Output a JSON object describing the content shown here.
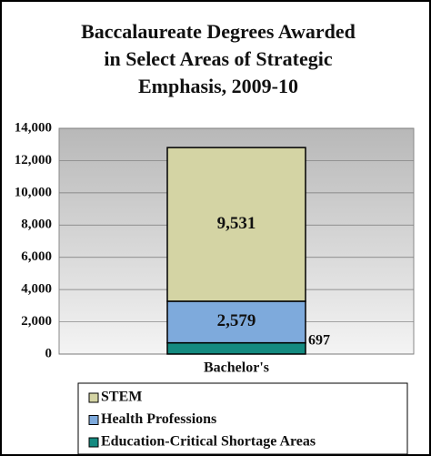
{
  "chart_data": {
    "type": "stacked_bar",
    "title": "Baccalaureate Degrees Awarded in Select Areas of Strategic Emphasis, 2009-10",
    "categories": [
      "Bachelor's"
    ],
    "series": [
      {
        "name": "Education-Critical Shortage Areas",
        "color": "#148a80",
        "values": [
          697
        ],
        "value_labels": [
          "697"
        ]
      },
      {
        "name": "Health Professions",
        "color": "#7eaadc",
        "values": [
          2579
        ],
        "value_labels": [
          "2,579"
        ]
      },
      {
        "name": "STEM",
        "color": "#d4d4a4",
        "values": [
          9531
        ],
        "value_labels": [
          "9,531"
        ]
      }
    ],
    "ylim": [
      0,
      14000
    ],
    "yticks": [
      0,
      {
        "value": 2000,
        "label": "2,000"
      },
      {
        "value": 4000,
        "label": "4,000"
      },
      {
        "value": 6000,
        "label": "6,000"
      },
      {
        "value": 8000,
        "label": "8,000"
      },
      {
        "value": 10000,
        "label": "10,000"
      },
      {
        "value": 12000,
        "label": "12,000"
      },
      {
        "value": 14000,
        "label": "14,000"
      }
    ],
    "grid": true
  }
}
